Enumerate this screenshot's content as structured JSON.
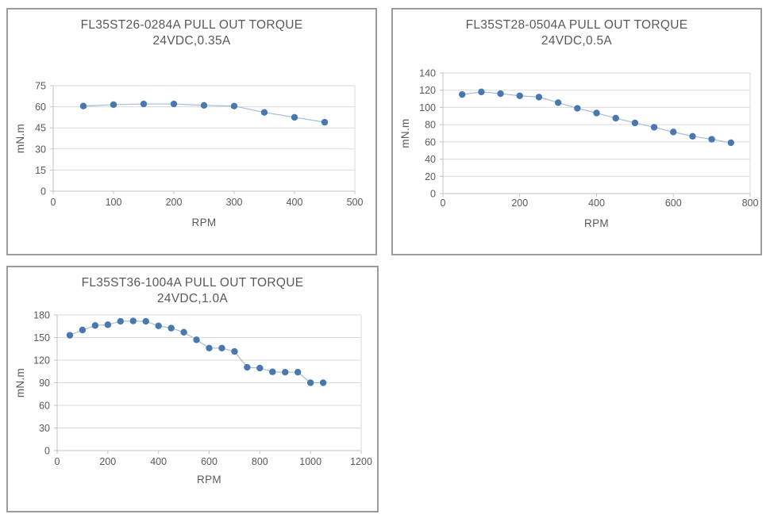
{
  "page": {
    "background": "#ffffff"
  },
  "styles": {
    "point_color": "#4878ad",
    "line_color": "#a4bdd6",
    "grid_color": "#dadada",
    "axis_color": "#c3c3c3",
    "text_color": "#595959",
    "panel_border_color": "#9b9b9b"
  },
  "chart_data": [
    {
      "type": "line",
      "title_line1": "FL35ST26-0284A PULL OUT TORQUE",
      "title_line2": "24VDC,0.35A",
      "xlabel": "RPM",
      "ylabel": "mN.m",
      "x": [
        50,
        100,
        150,
        200,
        250,
        300,
        350,
        400,
        450
      ],
      "y": [
        60.5,
        61.5,
        62,
        62,
        61,
        60.5,
        56,
        52.5,
        49
      ],
      "xlim": [
        0,
        500
      ],
      "xticks": [
        0,
        100,
        200,
        300,
        400,
        500
      ],
      "ylim": [
        0,
        75
      ],
      "yticks": [
        0,
        15,
        30,
        45,
        60,
        75
      ],
      "grid": "horizontal",
      "legend": "none",
      "marker": "circle"
    },
    {
      "type": "line",
      "title_line1": "FL35ST28-0504A PULL OUT TORQUE",
      "title_line2": "24VDC,0.5A",
      "xlabel": "RPM",
      "ylabel": "mN.m",
      "x": [
        50,
        100,
        150,
        200,
        250,
        300,
        350,
        400,
        450,
        500,
        550,
        600,
        650,
        700,
        750
      ],
      "y": [
        115,
        118,
        116,
        113.5,
        112,
        105.5,
        99,
        93.5,
        87.5,
        82,
        77,
        71.5,
        66.5,
        63,
        59
      ],
      "xlim": [
        0,
        800
      ],
      "xticks": [
        0,
        200,
        400,
        600,
        800
      ],
      "ylim": [
        0,
        140
      ],
      "yticks": [
        0,
        20,
        40,
        60,
        80,
        100,
        120,
        140
      ],
      "grid": "horizontal",
      "legend": "none",
      "marker": "circle"
    },
    {
      "type": "line",
      "title_line1": "FL35ST36-1004A PULL OUT TORQUE",
      "title_line2": "24VDC,1.0A",
      "xlabel": "RPM",
      "ylabel": "mN.m",
      "x": [
        50,
        100,
        150,
        200,
        250,
        300,
        350,
        400,
        450,
        500,
        550,
        600,
        650,
        700,
        750,
        800,
        850,
        900,
        950,
        1000,
        1050
      ],
      "y": [
        153,
        160,
        166,
        167,
        171.5,
        172,
        171.5,
        165.5,
        162.5,
        157,
        147,
        136,
        136,
        131.5,
        110.5,
        109.5,
        104.5,
        104,
        104,
        90,
        90
      ],
      "xlim": [
        0,
        1200
      ],
      "xticks": [
        0,
        200,
        400,
        600,
        800,
        1000,
        1200
      ],
      "ylim": [
        0,
        180
      ],
      "yticks": [
        0,
        30,
        60,
        90,
        120,
        150,
        180
      ],
      "grid": "horizontal",
      "legend": "none",
      "marker": "circle"
    }
  ]
}
